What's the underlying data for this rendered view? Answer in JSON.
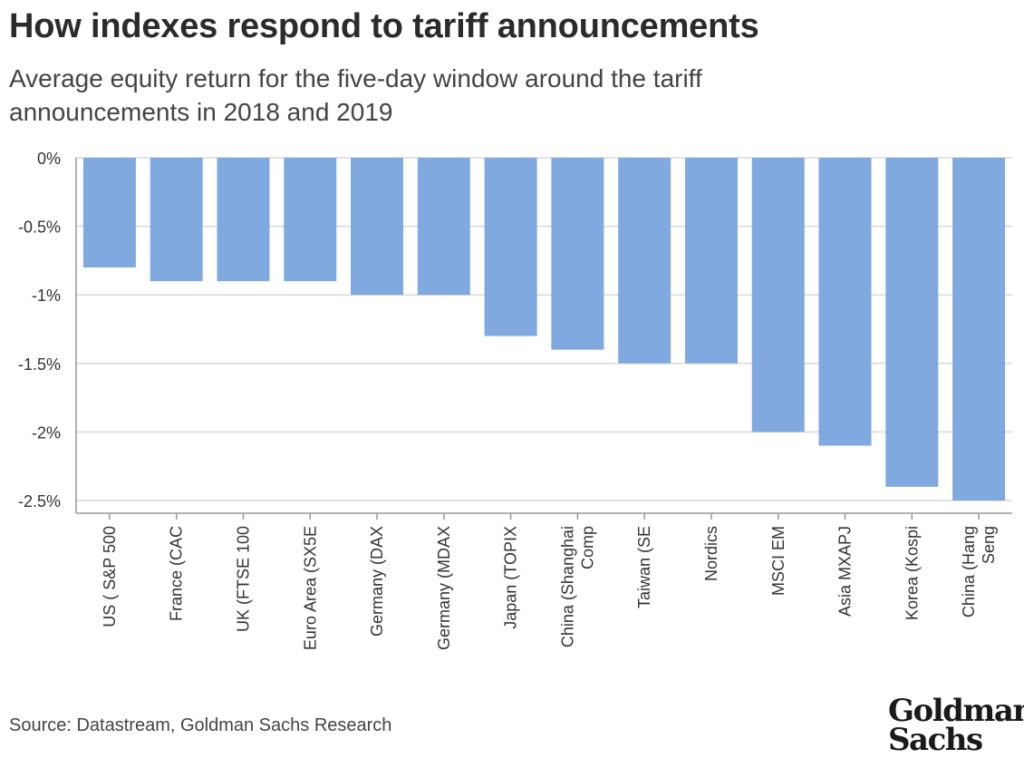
{
  "header": {
    "title": "How indexes respond to tariff announcements",
    "subtitle": "Average equity return for the five-day window around the tariff announcements in 2018 and 2019"
  },
  "footer": {
    "source": "Source: Datastream, Goldman Sachs Research",
    "logo_line1": "Goldman",
    "logo_line2": "Sachs"
  },
  "colors": {
    "bar": "#7fa9df",
    "grid": "#d9d9d9",
    "axis": "#999999",
    "text": "#333333"
  },
  "chart_data": {
    "type": "bar",
    "categories": [
      "US ( S&P 500",
      "France (CAC",
      "UK (FTSE 100",
      "Euro Area (SX5E",
      "Germany (DAX",
      "Germany (MDAX",
      "Japan (TOPIX",
      "China (Shanghai Comp",
      "Taiwan (SE",
      "Nordics",
      "MSCI EM",
      "Asia MXAPJ",
      "Korea (Kospi",
      "China (Hang Seng"
    ],
    "category_lines": [
      [
        "US ( S&P 500"
      ],
      [
        "France (CAC"
      ],
      [
        "UK (FTSE 100"
      ],
      [
        "Euro Area (SX5E"
      ],
      [
        "Germany (DAX"
      ],
      [
        "Germany (MDAX"
      ],
      [
        "Japan (TOPIX"
      ],
      [
        "China (Shanghai",
        "Comp"
      ],
      [
        "Taiwan (SE"
      ],
      [
        "Nordics"
      ],
      [
        "MSCI EM"
      ],
      [
        "Asia MXAPJ"
      ],
      [
        "Korea (Kospi"
      ],
      [
        "China (Hang",
        "Seng"
      ]
    ],
    "values": [
      -0.8,
      -0.9,
      -0.9,
      -0.9,
      -1.0,
      -1.0,
      -1.3,
      -1.4,
      -1.5,
      -1.5,
      -2.0,
      -2.1,
      -2.4,
      -2.5
    ],
    "ylim": [
      -2.5,
      0
    ],
    "yticks": [
      0,
      -0.5,
      -1,
      -1.5,
      -2,
      -2.5
    ],
    "ytick_labels": [
      "0%",
      "-0.5%",
      "-1%",
      "-1.5%",
      "-2%",
      "-2.5%"
    ],
    "xlabel": "",
    "ylabel": "",
    "grid": true,
    "legend": "none"
  }
}
